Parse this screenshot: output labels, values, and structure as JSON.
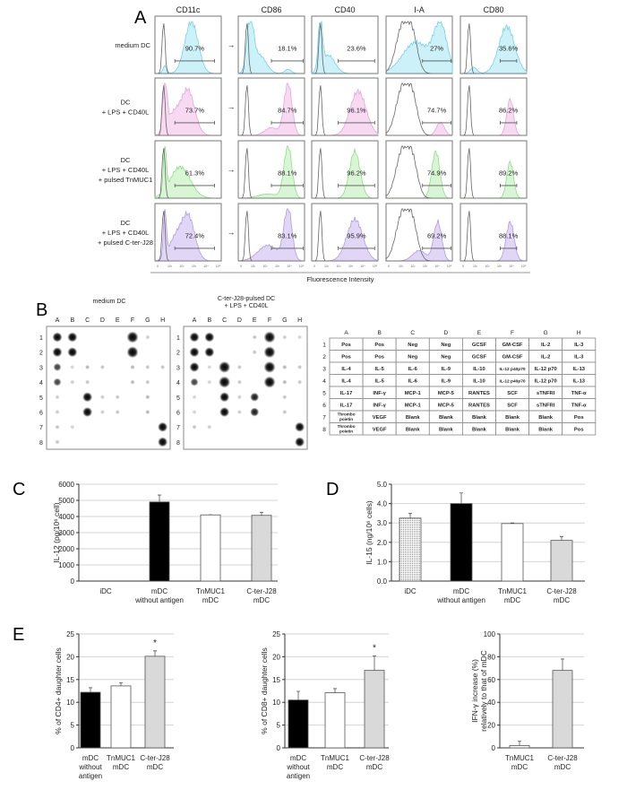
{
  "panel_a": {
    "label": "A",
    "markers": [
      "CD11c",
      "CD86",
      "CD40",
      "I-A",
      "CD80"
    ],
    "arrow": "→",
    "conditions": [
      {
        "label_lines": [
          "medium DC"
        ],
        "percentages": [
          "90.7%",
          "18.1%",
          "23.6%",
          "27%",
          "35.6%"
        ],
        "fill": "#cdf1f8",
        "stroke": "#74d3e6"
      },
      {
        "label_lines": [
          "DC",
          "+ LPS + CD40L"
        ],
        "percentages": [
          "73.7%",
          "84.7%",
          "96.1%",
          "74.7%",
          "86.2%"
        ],
        "fill": "#f8d9f2",
        "stroke": "#e6a6dc"
      },
      {
        "label_lines": [
          "DC",
          "+ LPS + CD40L",
          "+ pulsed TnMUC1"
        ],
        "percentages": [
          "61.3%",
          "88.1%",
          "96.2%",
          "74.9%",
          "89.2%"
        ],
        "fill": "#d8f6d4",
        "stroke": "#8edf88"
      },
      {
        "label_lines": [
          "DC",
          "+ LPS + CD40L",
          "+ pulsed C-ter-J28"
        ],
        "percentages": [
          "72.4%",
          "83.1%",
          "95.9%",
          "69.2%",
          "88.1%"
        ],
        "fill": "#e2d6f7",
        "stroke": "#b29ae6"
      }
    ],
    "axis_ticks": [
      "0",
      "10¹",
      "10²",
      "10³",
      "10⁴",
      "10⁵"
    ],
    "xlabel": "Fluorescence Intensity"
  },
  "panel_b": {
    "label": "B",
    "blots": [
      {
        "title_lines": [
          "medium DC"
        ],
        "intensity": [
          [
            3,
            3,
            0,
            0,
            0,
            4,
            0.2,
            0
          ],
          [
            3,
            3,
            0,
            0,
            0,
            4,
            0,
            0
          ],
          [
            2,
            0.1,
            0.5,
            0.3,
            0,
            0.5,
            0.3,
            0.3
          ],
          [
            2,
            0.2,
            0.3,
            0,
            0,
            0.5,
            0.3,
            0
          ],
          [
            0.2,
            0,
            3,
            0.2,
            0.3,
            0,
            0.5,
            0
          ],
          [
            0.2,
            0,
            3,
            0.2,
            0.3,
            0,
            0.5,
            0
          ],
          [
            0.3,
            0.1,
            0,
            0,
            0,
            0,
            0,
            3
          ],
          [
            0.3,
            0,
            0,
            0,
            0,
            0,
            0,
            3
          ]
        ]
      },
      {
        "title_lines": [
          "C-ter-J28-pulsed DC",
          "+ LPS + CD40L"
        ],
        "intensity": [
          [
            3,
            3,
            0,
            0,
            0.3,
            4,
            0.2,
            0.1
          ],
          [
            3,
            3,
            0,
            0,
            0.3,
            4,
            0,
            0
          ],
          [
            3,
            0.1,
            4,
            0.3,
            0,
            4,
            0.5,
            0.3
          ],
          [
            2,
            0.1,
            4,
            0.3,
            0,
            4,
            0.5,
            0.3
          ],
          [
            0.1,
            0,
            3,
            0.2,
            2.5,
            0,
            0.3,
            0
          ],
          [
            0.1,
            0,
            3,
            0.2,
            2.5,
            0,
            0.3,
            0
          ],
          [
            0.3,
            0.2,
            0,
            0,
            0,
            0,
            0,
            3
          ],
          [
            0,
            0,
            0,
            0,
            0,
            0,
            0,
            3
          ]
        ]
      }
    ],
    "columns": [
      "A",
      "B",
      "C",
      "D",
      "E",
      "F",
      "G",
      "H"
    ],
    "rows": [
      "1",
      "2",
      "3",
      "4",
      "5",
      "6",
      "7",
      "8"
    ],
    "legend_table": [
      [
        "Pos",
        "Pos",
        "Neg",
        "Neg",
        "GCSF",
        "GM-CSF",
        "IL-2",
        "IL-3"
      ],
      [
        "Pos",
        "Pos",
        "Neg",
        "Neg",
        "GCSF",
        "GM-CSF",
        "IL-2",
        "IL-3"
      ],
      [
        "IL-4",
        "IL-5",
        "IL-6",
        "IL-9",
        "IL-10",
        "IL-12 p40p70",
        "IL-12 p70",
        "IL-13"
      ],
      [
        "IL-4",
        "IL-5",
        "IL-6",
        "IL-9",
        "IL-10",
        "IL-12 p40p70",
        "IL-12 p70",
        "IL-13"
      ],
      [
        "IL-17",
        "INF-γ",
        "MCP-1",
        "MCP-5",
        "RANTES",
        "SCF",
        "sTNFRI",
        "TNF-α"
      ],
      [
        "IL-17",
        "INF-γ",
        "MCP-1",
        "MCP-5",
        "RANTES",
        "SCF",
        "sTNFRI",
        "TNF-α"
      ],
      [
        "Thrombo\npoietin",
        "VEGF",
        "Blank",
        "Blank",
        "Blank",
        "Blank",
        "Blank",
        "Pos"
      ],
      [
        "Thrombo\npoietin",
        "VEGF",
        "Blank",
        "Blank",
        "Blank",
        "Blank",
        "Blank",
        "Pos"
      ]
    ]
  },
  "chart_data": [
    {
      "panel": "C",
      "type": "bar",
      "title": "",
      "xlabel": "",
      "ylabel": "IL-12 (pg/10⁶ cell)",
      "categories": [
        "iDC",
        "mDC\nwithout antigen",
        "TnMUC1\nmDC",
        "C-ter-J28\nmDC"
      ],
      "values": [
        0,
        4900,
        4100,
        4070
      ],
      "errors": [
        0,
        430,
        10,
        190
      ],
      "colors": [
        "#ffffff",
        "#000000",
        "#ffffff",
        "#d9d9d9"
      ],
      "ylim": [
        0,
        6000
      ],
      "yticks": [
        "0",
        "1000",
        "2000",
        "3000",
        "4000",
        "5000",
        "6000"
      ],
      "grid": true,
      "annotations": [
        "",
        "",
        "",
        ""
      ]
    },
    {
      "panel": "D",
      "type": "bar",
      "title": "",
      "xlabel": "",
      "ylabel": "IL-15 (ng/10⁶ cells)",
      "categories": [
        "iDC",
        "mDC\nwithout antigen",
        "TnMUC1\nmDC",
        "C-ter-J28\nmDC"
      ],
      "values": [
        3.25,
        4.0,
        2.97,
        2.1
      ],
      "errors": [
        0.25,
        0.55,
        0.03,
        0.2
      ],
      "colors": [
        "dotted",
        "#000000",
        "#ffffff",
        "#d9d9d9"
      ],
      "ylim": [
        0,
        5
      ],
      "yticks": [
        "0.0",
        "1.0",
        "2.0",
        "3.0",
        "4.0",
        "5.0"
      ],
      "grid": true,
      "annotations": [
        "",
        "",
        "",
        ""
      ]
    },
    {
      "panel": "E",
      "type": "bar",
      "title": "",
      "xlabel": "",
      "ylabel": "% of CD4+ daughter cells",
      "categories": [
        "mDC\nwithout\nantigen",
        "TnMUC1\nmDC",
        "C-ter-J28\nmDC"
      ],
      "values": [
        12.2,
        13.6,
        20.1
      ],
      "errors": [
        1.0,
        0.7,
        1.2
      ],
      "colors": [
        "#000000",
        "#ffffff",
        "#d9d9d9"
      ],
      "ylim": [
        0,
        25
      ],
      "yticks": [
        "0",
        "5",
        "10",
        "15",
        "20",
        "25"
      ],
      "grid": true,
      "annotations": [
        "",
        "",
        "*"
      ]
    },
    {
      "panel": "E",
      "type": "bar",
      "title": "",
      "xlabel": "",
      "ylabel": "% of CD8+ daughter cells",
      "categories": [
        "mDC\nwithout\nantigen",
        "TnMUC1\nmDC",
        "C-ter-J28\nmDC"
      ],
      "values": [
        10.5,
        12.1,
        17.0
      ],
      "errors": [
        1.9,
        0.9,
        3.2
      ],
      "colors": [
        "#000000",
        "#ffffff",
        "#d9d9d9"
      ],
      "ylim": [
        0,
        25
      ],
      "yticks": [
        "0",
        "5",
        "10",
        "15",
        "20",
        "25"
      ],
      "grid": true,
      "annotations": [
        "",
        "",
        "*"
      ]
    },
    {
      "panel": "E",
      "type": "bar",
      "title": "",
      "xlabel": "",
      "ylabel": "IFN-γ increase (%)\nrelatively to that of mDC",
      "categories": [
        "TnMUC1\nmDC",
        "C-ter-J28\nmDC"
      ],
      "values": [
        2,
        68
      ],
      "errors": [
        4,
        10
      ],
      "colors": [
        "#ffffff",
        "#d9d9d9"
      ],
      "ylim": [
        0,
        100
      ],
      "yticks": [
        "0",
        "20",
        "40",
        "60",
        "80",
        "100"
      ],
      "grid": true,
      "annotations": [
        "",
        ""
      ]
    }
  ]
}
